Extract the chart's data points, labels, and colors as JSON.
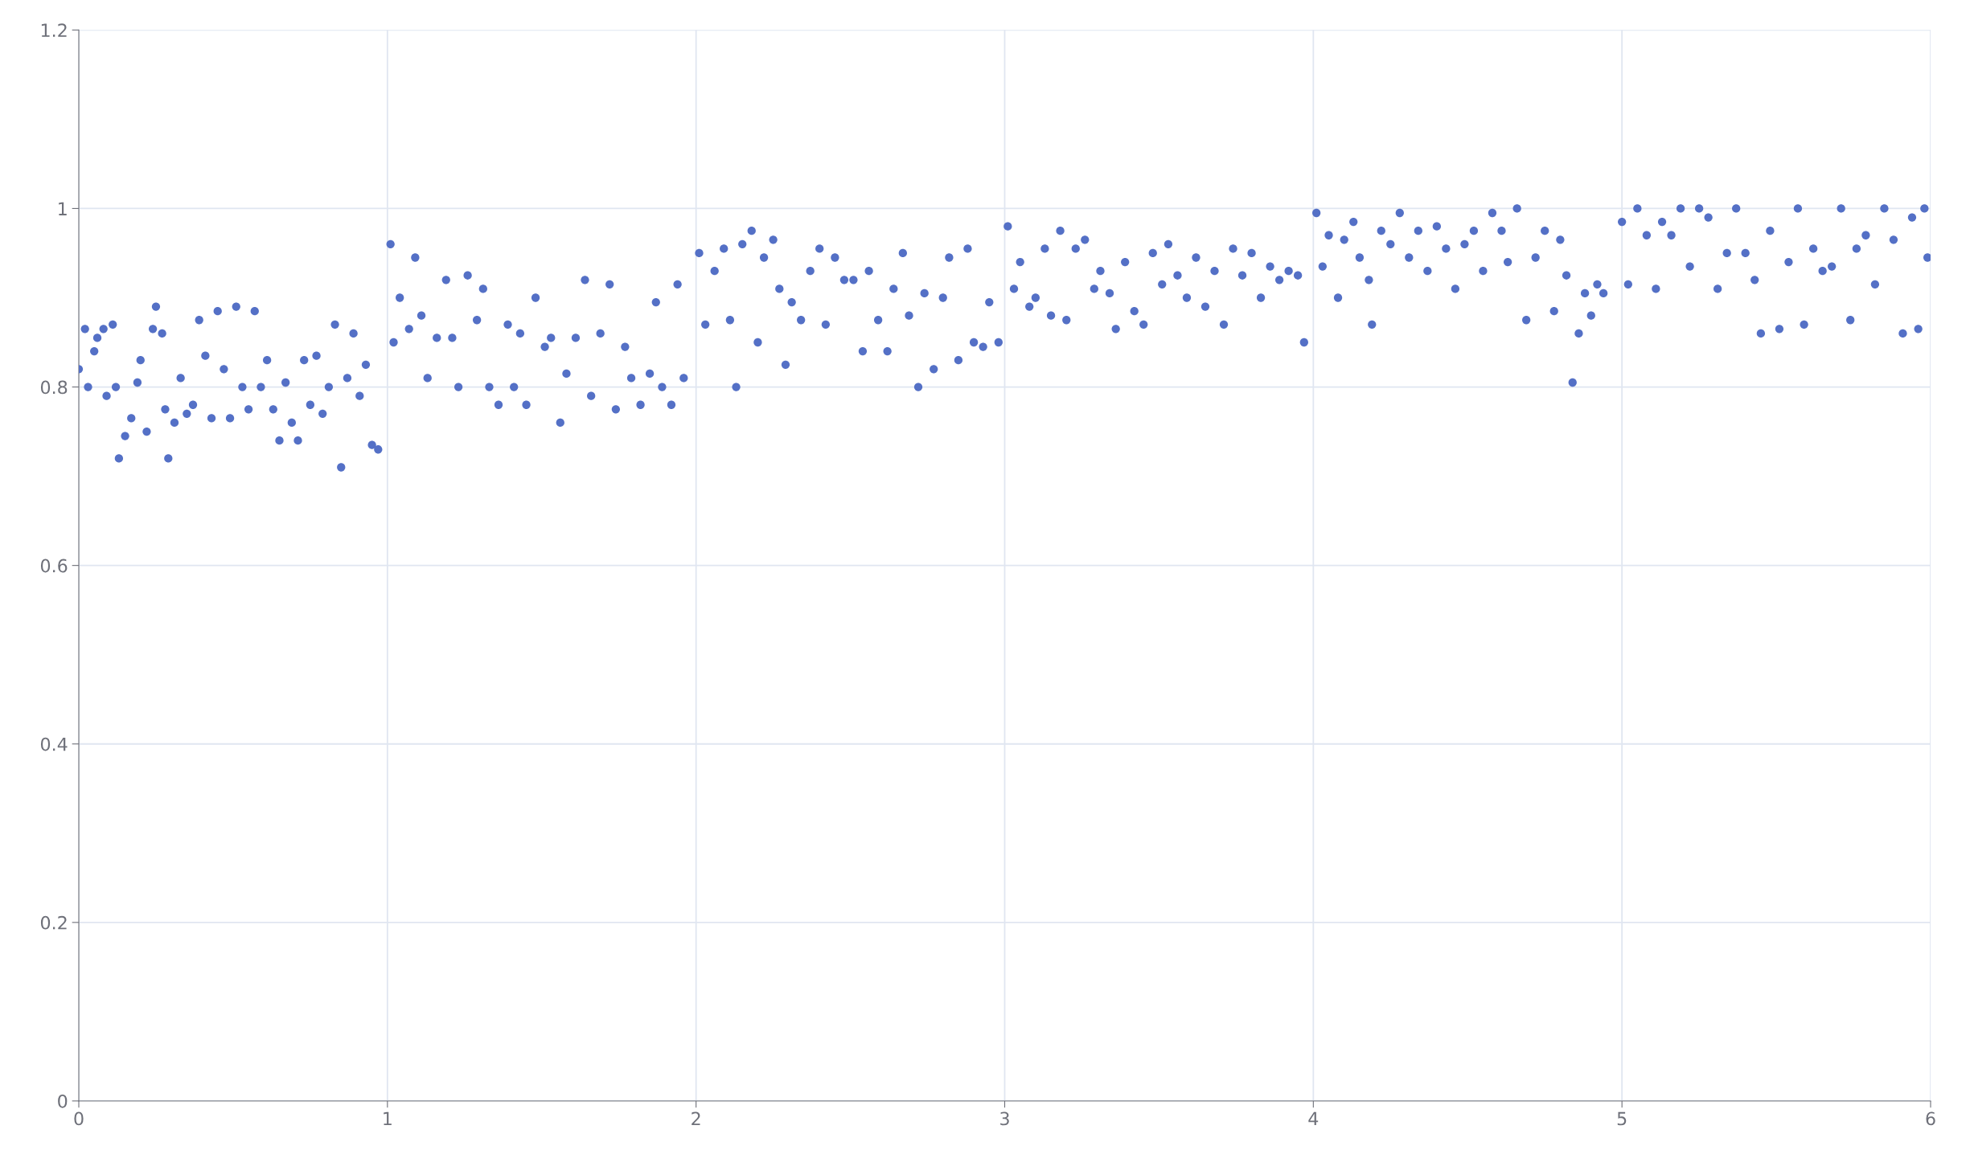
{
  "chart_data": {
    "type": "scatter",
    "xlim": [
      0,
      6
    ],
    "ylim": [
      0,
      1.2
    ],
    "xticks": [
      0,
      1,
      2,
      3,
      4,
      5,
      6
    ],
    "yticks": [
      0,
      0.2,
      0.4,
      0.6,
      0.8,
      1,
      1.2
    ],
    "grid": true,
    "marker": "circle",
    "series": [
      {
        "color": "#5470c6",
        "x": [
          0.0,
          0.02,
          0.03,
          0.05,
          0.06,
          0.08,
          0.09,
          0.11,
          0.12,
          0.13,
          0.15,
          0.17,
          0.19,
          0.2,
          0.22,
          0.24,
          0.25,
          0.27,
          0.28,
          0.29,
          0.31,
          0.33,
          0.35,
          0.37,
          0.39,
          0.41,
          0.43,
          0.45,
          0.47,
          0.49,
          0.51,
          0.53,
          0.55,
          0.57,
          0.59,
          0.61,
          0.63,
          0.65,
          0.67,
          0.69,
          0.71,
          0.73,
          0.75,
          0.77,
          0.79,
          0.81,
          0.83,
          0.85,
          0.87,
          0.89,
          0.91,
          0.93,
          0.95,
          0.97,
          1.01,
          1.02,
          1.04,
          1.07,
          1.09,
          1.11,
          1.13,
          1.16,
          1.19,
          1.21,
          1.23,
          1.26,
          1.29,
          1.31,
          1.33,
          1.36,
          1.39,
          1.41,
          1.43,
          1.45,
          1.48,
          1.51,
          1.53,
          1.56,
          1.58,
          1.61,
          1.64,
          1.66,
          1.69,
          1.72,
          1.74,
          1.77,
          1.79,
          1.82,
          1.85,
          1.87,
          1.89,
          1.92,
          1.94,
          1.96,
          2.01,
          2.03,
          2.06,
          2.09,
          2.11,
          2.13,
          2.15,
          2.18,
          2.2,
          2.22,
          2.25,
          2.27,
          2.29,
          2.31,
          2.34,
          2.37,
          2.4,
          2.42,
          2.45,
          2.48,
          2.51,
          2.54,
          2.56,
          2.59,
          2.62,
          2.64,
          2.67,
          2.69,
          2.72,
          2.74,
          2.77,
          2.8,
          2.82,
          2.85,
          2.88,
          2.9,
          2.93,
          2.95,
          2.98,
          3.01,
          3.03,
          3.05,
          3.08,
          3.1,
          3.13,
          3.15,
          3.18,
          3.2,
          3.23,
          3.26,
          3.29,
          3.31,
          3.34,
          3.36,
          3.39,
          3.42,
          3.45,
          3.48,
          3.51,
          3.53,
          3.56,
          3.59,
          3.62,
          3.65,
          3.68,
          3.71,
          3.74,
          3.77,
          3.8,
          3.83,
          3.86,
          3.89,
          3.92,
          3.95,
          3.97,
          4.01,
          4.03,
          4.05,
          4.08,
          4.1,
          4.13,
          4.15,
          4.18,
          4.19,
          4.22,
          4.25,
          4.28,
          4.31,
          4.34,
          4.37,
          4.4,
          4.43,
          4.46,
          4.49,
          4.52,
          4.55,
          4.58,
          4.61,
          4.63,
          4.66,
          4.69,
          4.72,
          4.75,
          4.78,
          4.8,
          4.82,
          4.84,
          4.86,
          4.88,
          4.9,
          4.92,
          4.94,
          5.0,
          5.02,
          5.05,
          5.08,
          5.11,
          5.13,
          5.16,
          5.19,
          5.22,
          5.25,
          5.28,
          5.31,
          5.34,
          5.37,
          5.4,
          5.43,
          5.45,
          5.48,
          5.51,
          5.54,
          5.57,
          5.59,
          5.62,
          5.65,
          5.68,
          5.71,
          5.74,
          5.76,
          5.79,
          5.82,
          5.85,
          5.88,
          5.91,
          5.94,
          5.96,
          5.98,
          5.99
        ],
        "values": [
          0.82,
          0.865,
          0.8,
          0.84,
          0.855,
          0.865,
          0.79,
          0.87,
          0.8,
          0.72,
          0.745,
          0.765,
          0.805,
          0.83,
          0.75,
          0.865,
          0.89,
          0.86,
          0.775,
          0.72,
          0.76,
          0.81,
          0.77,
          0.78,
          0.875,
          0.835,
          0.765,
          0.885,
          0.82,
          0.765,
          0.89,
          0.8,
          0.775,
          0.885,
          0.8,
          0.83,
          0.775,
          0.74,
          0.805,
          0.76,
          0.74,
          0.83,
          0.78,
          0.835,
          0.77,
          0.8,
          0.87,
          0.71,
          0.81,
          0.86,
          0.79,
          0.825,
          0.735,
          0.73,
          0.96,
          0.85,
          0.9,
          0.865,
          0.945,
          0.88,
          0.81,
          0.855,
          0.92,
          0.855,
          0.8,
          0.925,
          0.875,
          0.91,
          0.8,
          0.78,
          0.87,
          0.8,
          0.86,
          0.78,
          0.9,
          0.845,
          0.855,
          0.76,
          0.815,
          0.855,
          0.92,
          0.79,
          0.86,
          0.915,
          0.775,
          0.845,
          0.81,
          0.78,
          0.815,
          0.895,
          0.8,
          0.78,
          0.915,
          0.81,
          0.95,
          0.87,
          0.93,
          0.955,
          0.875,
          0.8,
          0.96,
          0.975,
          0.85,
          0.945,
          0.965,
          0.91,
          0.825,
          0.895,
          0.875,
          0.93,
          0.955,
          0.87,
          0.945,
          0.92,
          0.92,
          0.84,
          0.93,
          0.875,
          0.84,
          0.91,
          0.95,
          0.88,
          0.8,
          0.905,
          0.82,
          0.9,
          0.945,
          0.83,
          0.955,
          0.85,
          0.845,
          0.895,
          0.85,
          0.98,
          0.91,
          0.94,
          0.89,
          0.9,
          0.955,
          0.88,
          0.975,
          0.875,
          0.955,
          0.965,
          0.91,
          0.93,
          0.905,
          0.865,
          0.94,
          0.885,
          0.87,
          0.95,
          0.915,
          0.96,
          0.925,
          0.9,
          0.945,
          0.89,
          0.93,
          0.87,
          0.955,
          0.925,
          0.95,
          0.9,
          0.935,
          0.92,
          0.93,
          0.925,
          0.85,
          0.995,
          0.935,
          0.97,
          0.9,
          0.965,
          0.985,
          0.945,
          0.92,
          0.87,
          0.975,
          0.96,
          0.995,
          0.945,
          0.975,
          0.93,
          0.98,
          0.955,
          0.91,
          0.96,
          0.975,
          0.93,
          0.995,
          0.975,
          0.94,
          1.0,
          0.875,
          0.945,
          0.975,
          0.885,
          0.965,
          0.925,
          0.805,
          0.86,
          0.905,
          0.88,
          0.915,
          0.905,
          0.985,
          0.915,
          1.0,
          0.97,
          0.91,
          0.985,
          0.97,
          1.0,
          0.935,
          1.0,
          0.99,
          0.91,
          0.95,
          1.0,
          0.95,
          0.92,
          0.86,
          0.975,
          0.865,
          0.94,
          1.0,
          0.87,
          0.955,
          0.93,
          0.935,
          1.0,
          0.875,
          0.955,
          0.97,
          0.915,
          1.0,
          0.965,
          0.86,
          0.99,
          0.865,
          1.0,
          0.945
        ]
      }
    ]
  }
}
